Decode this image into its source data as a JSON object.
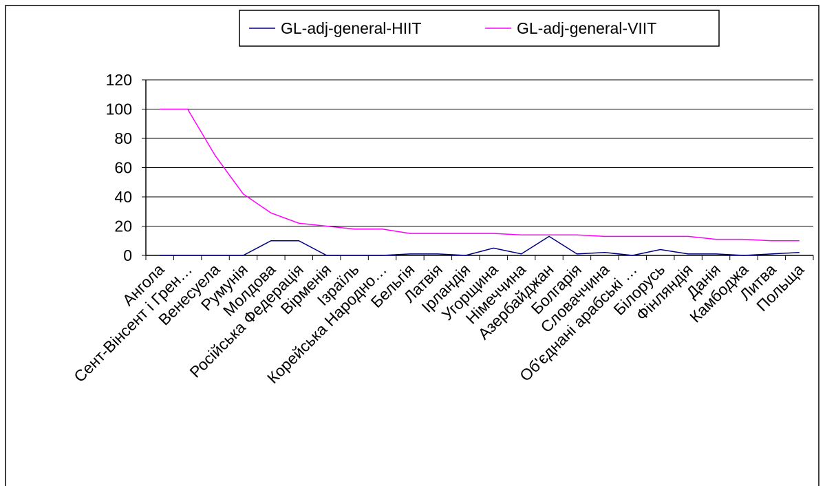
{
  "chart_data": {
    "type": "line",
    "categories": [
      "Ангола",
      "Сент-Вінсент і Грен…",
      "Венесуела",
      "Румунія",
      "Молдова",
      "Російська Федерація",
      "Вірменія",
      "Ізраїль",
      "Корейська Народно…",
      "Бельгія",
      "Латвія",
      "Ірландія",
      "Угорщина",
      "Німеччина",
      "Азербайджан",
      "Болгарія",
      "Словаччина",
      "Об'єднані арабські …",
      "Білорусь",
      "Фінляндія",
      "Данія",
      "Камбоджа",
      "Литва",
      "Польща"
    ],
    "series": [
      {
        "name": "GL-adj-general-HIIT",
        "color": "#000080",
        "values": [
          0,
          0,
          0,
          0,
          10,
          10,
          0,
          0,
          0,
          1,
          1,
          0,
          5,
          1,
          13,
          1,
          2,
          0,
          4,
          1,
          1,
          0,
          1,
          2
        ]
      },
      {
        "name": "GL-adj-general-VIIT",
        "color": "#ff00ff",
        "values": [
          100,
          100,
          68,
          42,
          29,
          22,
          20,
          18,
          18,
          15,
          15,
          15,
          15,
          14,
          14,
          14,
          13,
          13,
          13,
          13,
          11,
          11,
          10,
          10
        ]
      }
    ],
    "ylim": [
      0,
      120
    ],
    "yticks": [
      0,
      20,
      40,
      60,
      80,
      100,
      120
    ],
    "grid": true,
    "legend": "top"
  }
}
